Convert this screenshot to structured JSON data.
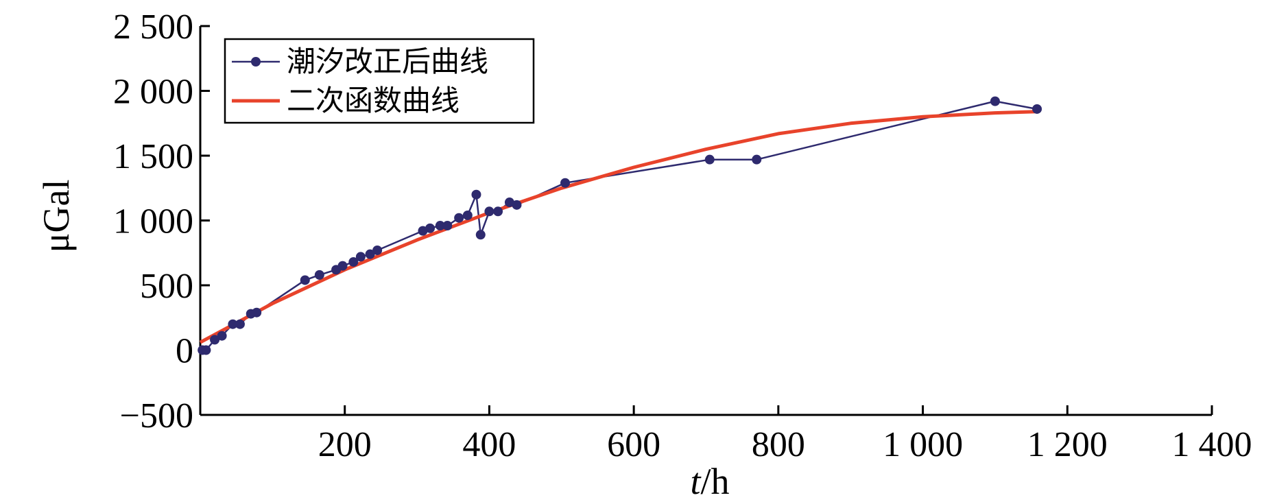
{
  "chart_data": {
    "type": "line",
    "title": "",
    "xlabel_italic": "t",
    "xlabel_rest": "/h",
    "ylabel": "μGal",
    "xlim": [
      0,
      1400
    ],
    "ylim": [
      -500,
      2500
    ],
    "x_ticks": [
      200,
      400,
      600,
      800,
      1000,
      1200,
      1400
    ],
    "x_tick_labels": [
      "200",
      "400",
      "600",
      "800",
      "1 000",
      "1 200",
      "1 400"
    ],
    "y_ticks": [
      -500,
      0,
      500,
      1000,
      1500,
      2000,
      2500
    ],
    "y_tick_labels": [
      "−500",
      "0",
      "500",
      "1 000",
      "1 500",
      "2 000",
      "2 500"
    ],
    "grid": false,
    "legend_position": "top-left",
    "series": [
      {
        "name": "潮汐改正后曲线",
        "color": "#2e2a6e",
        "marker": "circle",
        "x": [
          3,
          8,
          20,
          30,
          45,
          55,
          70,
          78,
          145,
          165,
          188,
          197,
          212,
          222,
          235,
          245,
          308,
          318,
          332,
          342,
          358,
          370,
          382,
          388,
          400,
          412,
          428,
          438,
          505,
          705,
          770,
          1100,
          1158
        ],
        "y": [
          0,
          0,
          80,
          110,
          200,
          200,
          280,
          290,
          540,
          580,
          620,
          650,
          680,
          720,
          740,
          770,
          920,
          940,
          960,
          960,
          1020,
          1040,
          1200,
          890,
          1070,
          1070,
          1140,
          1120,
          1290,
          1470,
          1470,
          1920,
          1860
        ]
      },
      {
        "name": "二次函数曲线",
        "color": "#e8432b",
        "marker": "none",
        "x": [
          0,
          100,
          200,
          300,
          400,
          500,
          600,
          700,
          800,
          900,
          1000,
          1100,
          1158
        ],
        "y": [
          60,
          360,
          620,
          850,
          1060,
          1250,
          1410,
          1550,
          1670,
          1750,
          1800,
          1830,
          1840
        ]
      }
    ]
  }
}
